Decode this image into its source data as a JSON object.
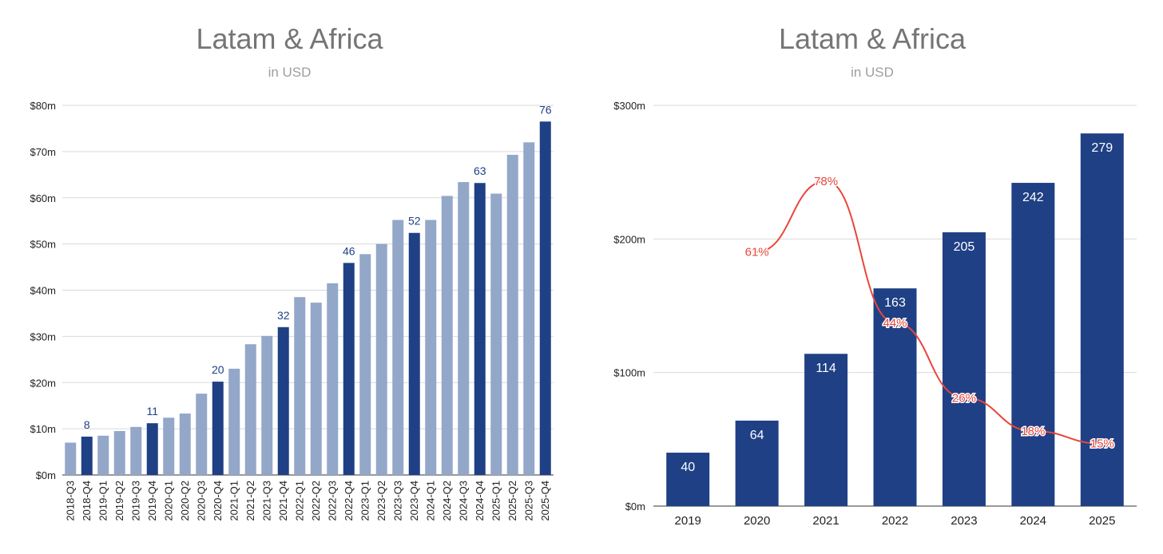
{
  "chart_data": [
    {
      "type": "bar",
      "title": "Latam & Africa",
      "subtitle": "in USD",
      "ylim": [
        0,
        80
      ],
      "yticks": [
        "$0m",
        "$10m",
        "$20m",
        "$30m",
        "$40m",
        "$50m",
        "$60m",
        "$70m",
        "$80m"
      ],
      "categories": [
        "2018-Q3",
        "2018-Q4",
        "2019-Q1",
        "2019-Q2",
        "2019-Q3",
        "2019-Q4",
        "2020-Q1",
        "2020-Q2",
        "2020-Q3",
        "2020-Q4",
        "2021-Q1",
        "2021-Q2",
        "2021-Q3",
        "2021-Q4",
        "2022-Q1",
        "2022-Q2",
        "2022-Q3",
        "2022-Q4",
        "2023-Q1",
        "2023-Q2",
        "2023-Q3",
        "2023-Q4",
        "2024-Q1",
        "2024-Q2",
        "2024-Q3",
        "2024-Q4",
        "2025-Q1",
        "2025-Q2",
        "2025-Q3",
        "2025-Q4"
      ],
      "values": [
        7.0,
        8.3,
        8.5,
        9.5,
        10.4,
        11.2,
        12.4,
        13.3,
        17.6,
        20.2,
        23.0,
        28.3,
        30.1,
        32.0,
        38.5,
        37.3,
        41.5,
        45.9,
        47.8,
        50.0,
        55.2,
        52.4,
        55.2,
        60.4,
        63.4,
        63.2,
        60.9,
        69.3,
        72.0,
        76.5
      ],
      "highlight_q4": [
        false,
        true,
        false,
        false,
        false,
        true,
        false,
        false,
        false,
        true,
        false,
        false,
        false,
        true,
        false,
        false,
        false,
        true,
        false,
        false,
        false,
        true,
        false,
        false,
        false,
        true,
        false,
        false,
        false,
        true
      ],
      "data_labels": [
        "",
        "8",
        "",
        "",
        "",
        "11",
        "",
        "",
        "",
        "20",
        "",
        "",
        "",
        "32",
        "",
        "",
        "",
        "46",
        "",
        "",
        "",
        "52",
        "",
        "",
        "",
        "63",
        "",
        "",
        "",
        "76"
      ],
      "colors": {
        "light": "#93a7c9",
        "dark": "#1f4085",
        "grid": "#d9d9d9",
        "label": "#1f4085"
      }
    },
    {
      "type": "bar+line",
      "title": "Latam & Africa",
      "subtitle": "in USD",
      "ylim": [
        0,
        300
      ],
      "yticks": [
        "$0m",
        "$100m",
        "$200m",
        "$300m"
      ],
      "categories": [
        "2019",
        "2020",
        "2021",
        "2022",
        "2023",
        "2024",
        "2025"
      ],
      "values": [
        40,
        64,
        114,
        163,
        205,
        242,
        279
      ],
      "data_labels": [
        "40",
        "64",
        "114",
        "163",
        "205",
        "242",
        "279"
      ],
      "growth_pct": [
        null,
        61,
        78,
        44,
        26,
        18,
        15
      ],
      "growth_labels": [
        "",
        "61%",
        "78%",
        "44%",
        "26%",
        "18%",
        "15%"
      ],
      "colors": {
        "bar": "#1f4085",
        "line": "#e8473b",
        "grid": "#d9d9d9"
      }
    }
  ]
}
